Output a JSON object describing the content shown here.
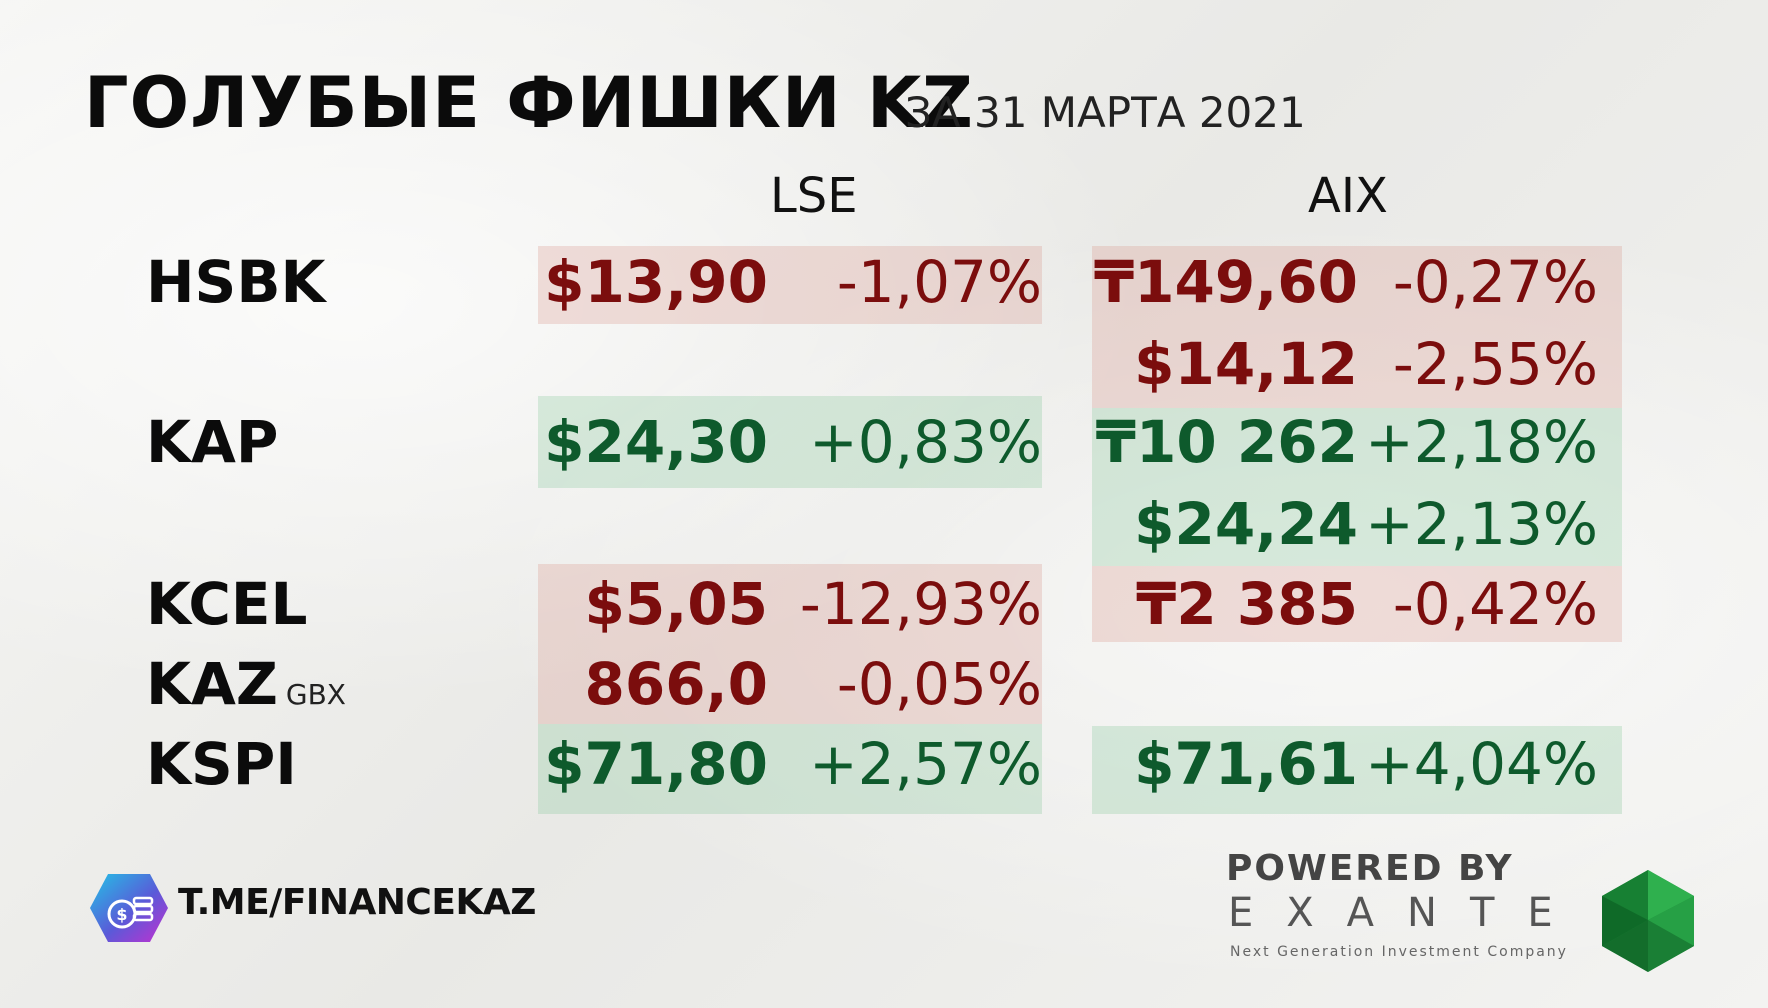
{
  "header": {
    "title": "ГОЛУБЫЕ ФИШКИ KZ",
    "subtitle": "ЗА 31 МАРТА 2021"
  },
  "exchanges": [
    "LSE",
    "AIX"
  ],
  "rows": [
    {
      "ticker": "HSBK",
      "unit": "",
      "lse": {
        "price": "$13,90",
        "change": "-1,07%",
        "dir": "down"
      },
      "aix": [
        {
          "price": "₸149,60",
          "change": "-0,27%",
          "dir": "down"
        },
        {
          "price": "$14,12",
          "change": "-2,55%",
          "dir": "down"
        }
      ]
    },
    {
      "ticker": "KAP",
      "unit": "",
      "lse": {
        "price": "$24,30",
        "change": "+0,83%",
        "dir": "up"
      },
      "aix": [
        {
          "price": "₸10 262",
          "change": "+2,18%",
          "dir": "up"
        },
        {
          "price": "$24,24",
          "change": "+2,13%",
          "dir": "up"
        }
      ]
    },
    {
      "ticker": "KCEL",
      "unit": "",
      "lse": {
        "price": "$5,05",
        "change": "-12,93%",
        "dir": "down"
      },
      "aix": [
        {
          "price": "₸2 385",
          "change": "-0,42%",
          "dir": "down"
        }
      ]
    },
    {
      "ticker": "KAZ",
      "unit": "GBX",
      "lse": {
        "price": "866,0",
        "change": "-0,05%",
        "dir": "down"
      },
      "aix": []
    },
    {
      "ticker": "KSPI",
      "unit": "",
      "lse": {
        "price": "$71,80",
        "change": "+2,57%",
        "dir": "up"
      },
      "aix": [
        {
          "price": "$71,61",
          "change": "+4,04%",
          "dir": "up"
        }
      ]
    }
  ],
  "footer": {
    "channel": "T.ME/FINANCEKAZ",
    "powered_by": "POWERED BY",
    "brand": "EXANTE",
    "brand_tagline": "Next Generation Investment Company"
  },
  "colors": {
    "negative": "#7b0d0d",
    "positive": "#0e5a2c",
    "negative_bg": "rgba(214,148,138,0.28)",
    "positive_bg": "rgba(130,196,150,0.28)"
  }
}
